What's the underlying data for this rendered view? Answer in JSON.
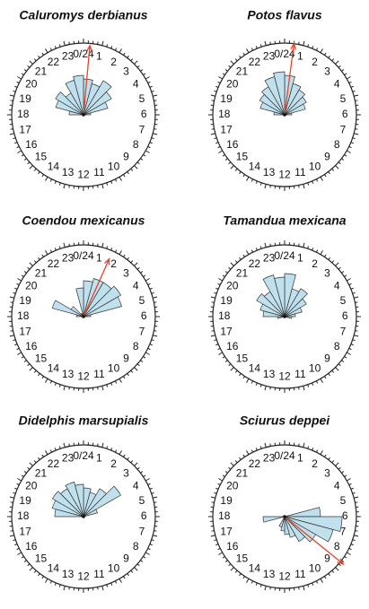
{
  "chart_data": [
    {
      "type": "rose",
      "title": "Caluromys derbianus",
      "categories": [
        "0/24",
        "1",
        "2",
        "3",
        "4",
        "5",
        "6",
        "7",
        "8",
        "9",
        "10",
        "11",
        "12",
        "13",
        "14",
        "15",
        "16",
        "17",
        "18",
        "19",
        "20",
        "21",
        "22",
        "23"
      ],
      "values": [
        50,
        45,
        55,
        45,
        35,
        10,
        0,
        0,
        0,
        0,
        0,
        0,
        0,
        0,
        0,
        0,
        0,
        0,
        20,
        40,
        45,
        35,
        50,
        55
      ],
      "color": "#bfe0ec",
      "rlim": [
        0,
        100
      ],
      "mean_vector": {
        "hour": 0.35,
        "length": 97
      },
      "vector_color": "#e8432a"
    },
    {
      "type": "rose",
      "title": "Potos flavus",
      "categories": [
        "0/24",
        "1",
        "2",
        "3",
        "4",
        "5",
        "6",
        "7",
        "8",
        "9",
        "10",
        "11",
        "12",
        "13",
        "14",
        "15",
        "16",
        "17",
        "18",
        "19",
        "20",
        "21",
        "22",
        "23"
      ],
      "values": [
        55,
        45,
        40,
        35,
        30,
        10,
        0,
        0,
        0,
        0,
        0,
        0,
        0,
        0,
        0,
        0,
        0,
        0,
        15,
        35,
        40,
        45,
        55,
        60
      ],
      "color": "#bfe0ec",
      "rlim": [
        0,
        100
      ],
      "mean_vector": {
        "hour": 0.5,
        "length": 100
      },
      "vector_color": "#e8432a"
    },
    {
      "type": "rose",
      "title": "Coendou mexicanus",
      "categories": [
        "0/24",
        "1",
        "2",
        "3",
        "4",
        "5",
        "6",
        "7",
        "8",
        "9",
        "10",
        "11",
        "12",
        "13",
        "14",
        "15",
        "16",
        "17",
        "18",
        "19",
        "20",
        "21",
        "22",
        "23"
      ],
      "values": [
        50,
        55,
        55,
        60,
        55,
        10,
        0,
        0,
        0,
        0,
        0,
        0,
        0,
        0,
        0,
        0,
        0,
        0,
        10,
        45,
        20,
        5,
        0,
        40
      ],
      "color": "#bfe0ec",
      "rlim": [
        0,
        100
      ],
      "mean_vector": {
        "hour": 1.6,
        "length": 88
      },
      "vector_color": "#e8432a"
    },
    {
      "type": "rose",
      "title": "Tamandua mexicana",
      "categories": [
        "0/24",
        "1",
        "2",
        "3",
        "4",
        "5",
        "6",
        "7",
        "8",
        "9",
        "10",
        "11",
        "12",
        "13",
        "14",
        "15",
        "16",
        "17",
        "18",
        "19",
        "20",
        "21",
        "22",
        "23"
      ],
      "values": [
        60,
        40,
        45,
        35,
        25,
        15,
        10,
        0,
        0,
        0,
        0,
        0,
        0,
        0,
        0,
        0,
        0,
        10,
        30,
        35,
        45,
        40,
        60,
        55
      ],
      "color": "#bfe0ec",
      "rlim": [
        0,
        100
      ]
    },
    {
      "type": "rose",
      "title": "Didelphis marsupialis",
      "categories": [
        "0/24",
        "1",
        "2",
        "3",
        "4",
        "5",
        "6",
        "7",
        "8",
        "9",
        "10",
        "11",
        "12",
        "13",
        "14",
        "15",
        "16",
        "17",
        "18",
        "19",
        "20",
        "21",
        "22",
        "23"
      ],
      "values": [
        40,
        35,
        45,
        60,
        20,
        0,
        0,
        0,
        0,
        0,
        0,
        0,
        0,
        0,
        0,
        0,
        0,
        0,
        40,
        45,
        50,
        45,
        50,
        45
      ],
      "color": "#bfe0ec",
      "rlim": [
        0,
        100
      ]
    },
    {
      "type": "rose",
      "title": "Sciurus deppei",
      "categories": [
        "0/24",
        "1",
        "2",
        "3",
        "4",
        "5",
        "6",
        "7",
        "8",
        "9",
        "10",
        "11",
        "12",
        "13",
        "14",
        "15",
        "16",
        "17",
        "18",
        "19",
        "20",
        "21",
        "22",
        "23"
      ],
      "values": [
        0,
        0,
        0,
        0,
        0,
        50,
        80,
        70,
        50,
        40,
        30,
        25,
        20,
        15,
        0,
        0,
        0,
        30,
        0,
        0,
        0,
        0,
        0,
        0
      ],
      "color": "#bfe0ec",
      "rlim": [
        0,
        100
      ],
      "mean_vector": {
        "hour": 8.6,
        "length": 105
      },
      "vector_color": "#e8432a"
    }
  ]
}
